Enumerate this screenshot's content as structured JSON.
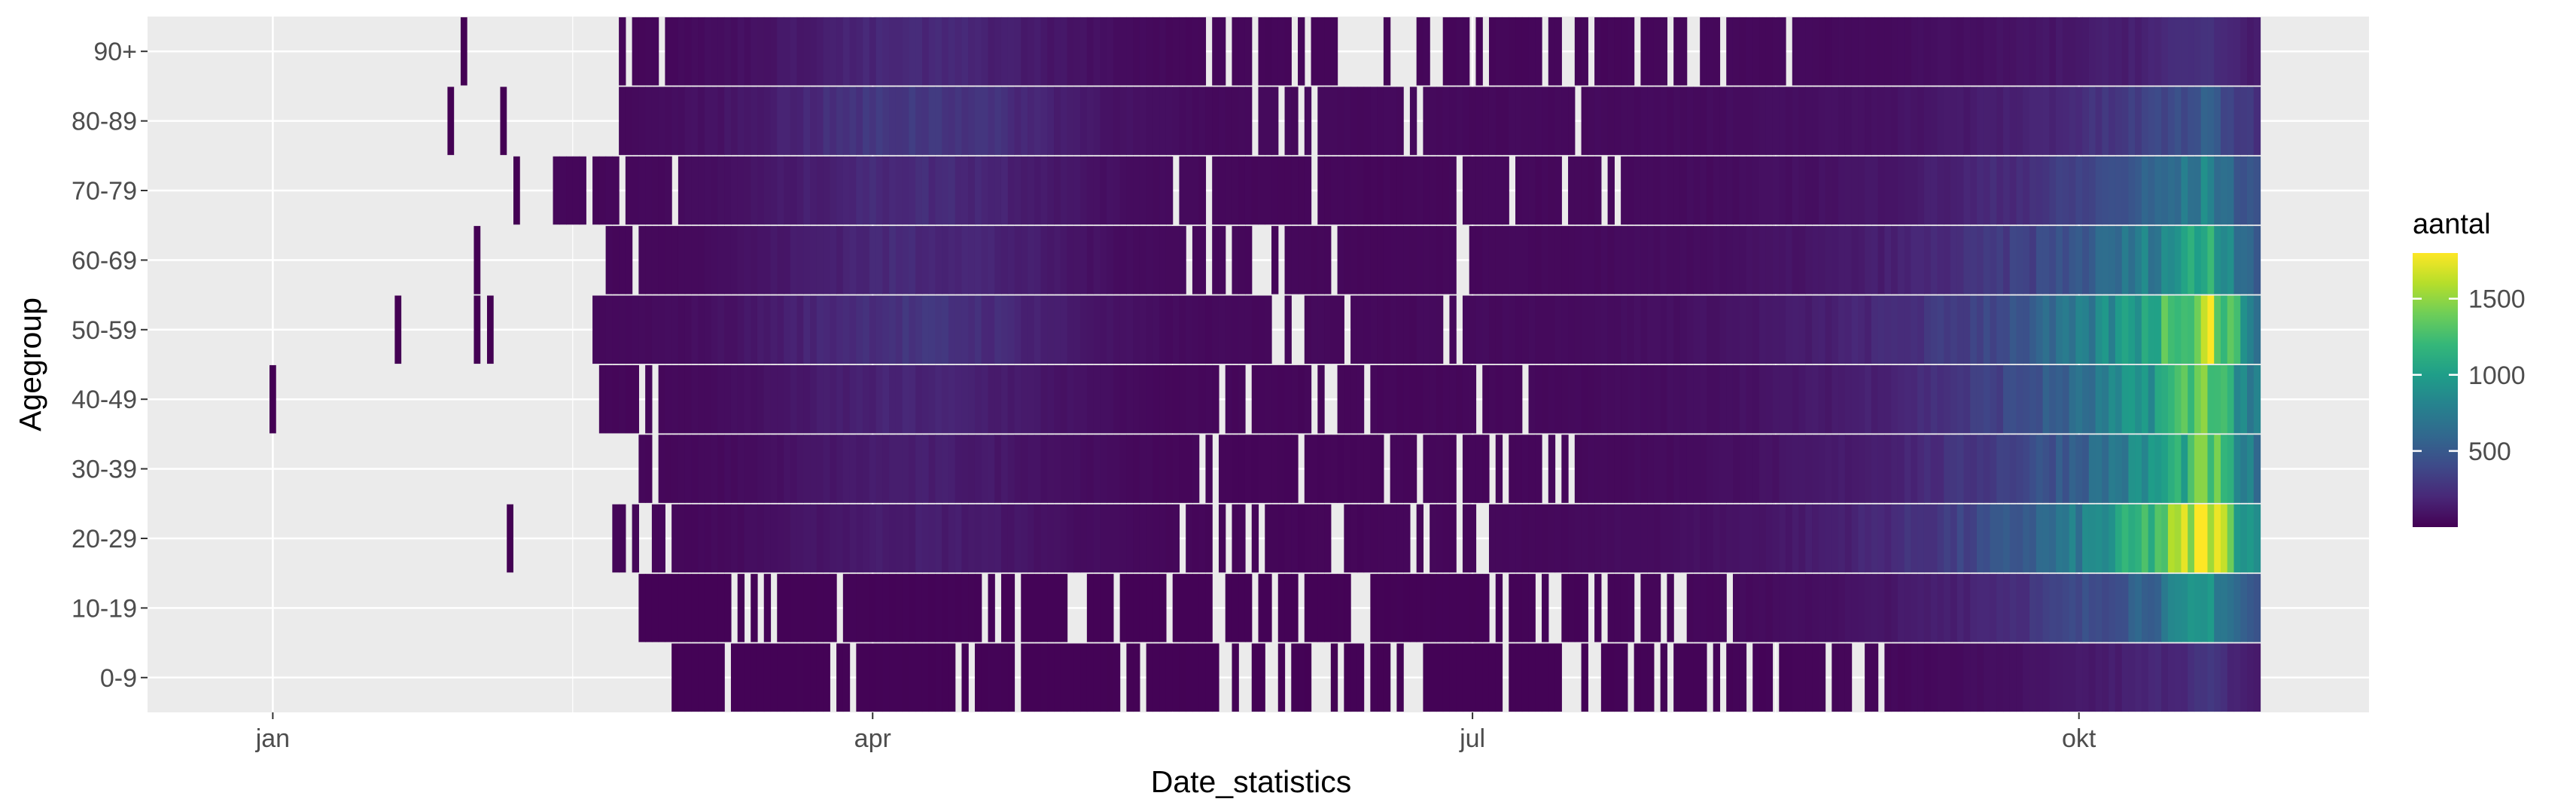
{
  "chart_data": {
    "type": "heatmap",
    "xlabel": "Date_statistics",
    "ylabel": "Agegroup",
    "x_ticks": [
      {
        "label": "jan",
        "date": "2020-01-01"
      },
      {
        "label": "apr",
        "date": "2020-04-01"
      },
      {
        "label": "jul",
        "date": "2020-07-01"
      },
      {
        "label": "okt",
        "date": "2020-10-01"
      }
    ],
    "xlim": [
      "2019-12-13",
      "2020-11-14"
    ],
    "agegroups": [
      "0-9",
      "10-19",
      "20-29",
      "30-39",
      "40-49",
      "50-59",
      "60-69",
      "70-79",
      "80-89",
      "90+"
    ],
    "legend": {
      "title": "aantal",
      "ticks": [
        500,
        1000,
        1500
      ],
      "min": 0,
      "max": 1800,
      "colors": [
        "#440154",
        "#482878",
        "#3e4a89",
        "#31688e",
        "#26828e",
        "#1f9e89",
        "#35b779",
        "#6ece58",
        "#b5de2b",
        "#fde725"
      ],
      "position": "right"
    },
    "grid": true,
    "panel_background": "#ebebeb",
    "start_dates": {
      "0-9": "2020-03-02",
      "10-19": "2020-02-26",
      "20-29": "2020-02-22",
      "30-39": "2020-02-25",
      "40-49": "2020-02-20",
      "50-59": "2020-02-19",
      "60-69": "2020-02-21",
      "70-79": "2020-02-13",
      "80-89": "2020-02-23",
      "90+": "2020-02-23"
    },
    "end_date": "2020-10-28",
    "sparse_early_cases": [
      {
        "group": "40-49",
        "date": "2020-01-01"
      },
      {
        "group": "50-59",
        "date": "2020-01-20"
      },
      {
        "group": "50-59",
        "date": "2020-02-01"
      },
      {
        "group": "50-59",
        "date": "2020-02-03"
      },
      {
        "group": "60-69",
        "date": "2020-02-01"
      },
      {
        "group": "20-29",
        "date": "2020-02-06"
      },
      {
        "group": "90+",
        "date": "2020-01-30"
      },
      {
        "group": "80-89",
        "date": "2020-01-28"
      },
      {
        "group": "80-89",
        "date": "2020-02-05"
      },
      {
        "group": "70-79",
        "date": "2020-02-07"
      }
    ],
    "peaks": {
      "0-9": 260,
      "10-19": 930,
      "20-29": 1800,
      "30-39": 1350,
      "40-49": 1450,
      "50-59": 1650,
      "60-69": 1150,
      "70-79": 780,
      "80-89": 470,
      "90+": 230
    },
    "spring_levels": {
      "0-9": 5,
      "10-19": 10,
      "20-29": 120,
      "30-39": 120,
      "40-49": 150,
      "50-59": 230,
      "60-69": 180,
      "70-79": 190,
      "80-89": 260,
      "90+": 170
    }
  }
}
